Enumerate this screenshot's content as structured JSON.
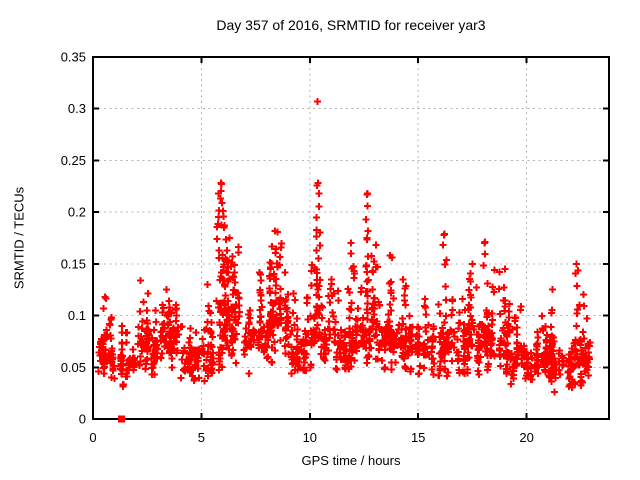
{
  "chart_data": {
    "type": "scatter",
    "title": "Day 357 of 2016, SRMTID for receiver yar3",
    "xlabel": "GPS time / hours",
    "ylabel": "SRMTID / TECUs",
    "xlim": [
      0,
      23.8
    ],
    "ylim": [
      0,
      0.35
    ],
    "xtick_values": [
      0,
      5,
      10,
      15,
      20
    ],
    "xtick_labels": [
      "0",
      "5",
      "10",
      "15",
      "20"
    ],
    "ytick_values": [
      0,
      0.05,
      0.1,
      0.15,
      0.2,
      0.25,
      0.3,
      0.35
    ],
    "ytick_labels": [
      "0",
      "0.05",
      "0.1",
      "0.15",
      "0.2",
      "0.25",
      "0.3",
      "0.35"
    ],
    "grid": true,
    "legend": "none",
    "marker": "plus",
    "marker_color": "#ff0000",
    "grid_color": "#b3b3b3",
    "border_color": "#000000",
    "hourly_bins": [
      {
        "x0": 0,
        "x1": 1,
        "min": 0.035,
        "max": 0.105,
        "mean": 0.062,
        "n": 60
      },
      {
        "x0": 1,
        "x1": 2,
        "min": 0.03,
        "max": 0.1,
        "mean": 0.058,
        "n": 60
      },
      {
        "x0": 2,
        "x1": 3,
        "min": 0.04,
        "max": 0.13,
        "mean": 0.075,
        "n": 66
      },
      {
        "x0": 3,
        "x1": 4,
        "min": 0.045,
        "max": 0.128,
        "mean": 0.082,
        "n": 70
      },
      {
        "x0": 4,
        "x1": 5,
        "min": 0.03,
        "max": 0.112,
        "mean": 0.066,
        "n": 62
      },
      {
        "x0": 5,
        "x1": 6,
        "min": 0.028,
        "max": 0.15,
        "mean": 0.072,
        "n": 60
      },
      {
        "x0": 6,
        "x1": 7,
        "min": 0.05,
        "max": 0.185,
        "mean": 0.1,
        "n": 70
      },
      {
        "x0": 7,
        "x1": 8,
        "min": 0.04,
        "max": 0.16,
        "mean": 0.086,
        "n": 66
      },
      {
        "x0": 8,
        "x1": 9,
        "min": 0.05,
        "max": 0.175,
        "mean": 0.103,
        "n": 72
      },
      {
        "x0": 9,
        "x1": 10,
        "min": 0.04,
        "max": 0.13,
        "mean": 0.077,
        "n": 66
      },
      {
        "x0": 10,
        "x1": 11,
        "min": 0.045,
        "max": 0.16,
        "mean": 0.085,
        "n": 64
      },
      {
        "x0": 11,
        "x1": 12,
        "min": 0.04,
        "max": 0.135,
        "mean": 0.074,
        "n": 66
      },
      {
        "x0": 12,
        "x1": 13,
        "min": 0.05,
        "max": 0.165,
        "mean": 0.088,
        "n": 68
      },
      {
        "x0": 13,
        "x1": 14,
        "min": 0.04,
        "max": 0.155,
        "mean": 0.082,
        "n": 68
      },
      {
        "x0": 14,
        "x1": 15,
        "min": 0.04,
        "max": 0.135,
        "mean": 0.078,
        "n": 66
      },
      {
        "x0": 15,
        "x1": 16,
        "min": 0.04,
        "max": 0.13,
        "mean": 0.074,
        "n": 66
      },
      {
        "x0": 16,
        "x1": 17,
        "min": 0.04,
        "max": 0.14,
        "mean": 0.077,
        "n": 64
      },
      {
        "x0": 17,
        "x1": 18,
        "min": 0.04,
        "max": 0.14,
        "mean": 0.078,
        "n": 68
      },
      {
        "x0": 18,
        "x1": 19,
        "min": 0.04,
        "max": 0.15,
        "mean": 0.082,
        "n": 68
      },
      {
        "x0": 19,
        "x1": 20,
        "min": 0.03,
        "max": 0.14,
        "mean": 0.068,
        "n": 66
      },
      {
        "x0": 20,
        "x1": 21,
        "min": 0.03,
        "max": 0.115,
        "mean": 0.062,
        "n": 70
      },
      {
        "x0": 21,
        "x1": 22,
        "min": 0.025,
        "max": 0.115,
        "mean": 0.058,
        "n": 70
      },
      {
        "x0": 22,
        "x1": 22.9,
        "min": 0.02,
        "max": 0.13,
        "mean": 0.062,
        "n": 74
      }
    ],
    "spikes": [
      {
        "x": 0.55,
        "w": 0.1,
        "base": 0.06,
        "peak": 0.118,
        "n": 10
      },
      {
        "x": 2.2,
        "w": 0.15,
        "base": 0.07,
        "peak": 0.134,
        "n": 16
      },
      {
        "x": 3.4,
        "w": 0.2,
        "base": 0.07,
        "peak": 0.125,
        "n": 14
      },
      {
        "x": 5.9,
        "w": 0.2,
        "base": 0.1,
        "peak": 0.228,
        "n": 36
      },
      {
        "x": 6.3,
        "w": 0.25,
        "base": 0.08,
        "peak": 0.175,
        "n": 26
      },
      {
        "x": 8.4,
        "w": 0.3,
        "base": 0.09,
        "peak": 0.182,
        "n": 40
      },
      {
        "x": 10.38,
        "w": 0.1,
        "base": 0.1,
        "peak": 0.228,
        "n": 24
      },
      {
        "x": 11.0,
        "w": 0.15,
        "base": 0.07,
        "peak": 0.135,
        "n": 10
      },
      {
        "x": 11.9,
        "w": 0.15,
        "base": 0.08,
        "peak": 0.17,
        "n": 14
      },
      {
        "x": 12.65,
        "w": 0.07,
        "base": 0.12,
        "peak": 0.218,
        "n": 12
      },
      {
        "x": 13.05,
        "w": 0.2,
        "base": 0.08,
        "peak": 0.168,
        "n": 18
      },
      {
        "x": 13.7,
        "w": 0.15,
        "base": 0.08,
        "peak": 0.158,
        "n": 12
      },
      {
        "x": 14.3,
        "w": 0.2,
        "base": 0.07,
        "peak": 0.135,
        "n": 12
      },
      {
        "x": 16.2,
        "w": 0.1,
        "base": 0.08,
        "peak": 0.178,
        "n": 10
      },
      {
        "x": 17.5,
        "w": 0.25,
        "base": 0.07,
        "peak": 0.15,
        "n": 18
      },
      {
        "x": 18.05,
        "w": 0.15,
        "base": 0.08,
        "peak": 0.17,
        "n": 14
      },
      {
        "x": 19.0,
        "w": 0.25,
        "base": 0.06,
        "peak": 0.145,
        "n": 14
      },
      {
        "x": 21.2,
        "w": 0.15,
        "base": 0.04,
        "peak": 0.125,
        "n": 12
      },
      {
        "x": 22.3,
        "w": 0.1,
        "base": 0.06,
        "peak": 0.15,
        "n": 10
      }
    ],
    "outliers": [
      [
        10.35,
        0.307
      ],
      [
        5.92,
        0.227
      ],
      [
        10.33,
        0.226
      ],
      [
        10.42,
        0.218
      ],
      [
        5.87,
        0.213
      ],
      [
        12.64,
        0.217
      ],
      [
        12.66,
        0.206
      ],
      [
        6.02,
        0.196
      ],
      [
        10.3,
        0.195
      ],
      [
        12.6,
        0.193
      ],
      [
        8.52,
        0.181
      ],
      [
        16.22,
        0.179
      ],
      [
        18.08,
        0.171
      ]
    ],
    "special_points": [
      {
        "x": 1.32,
        "y": 0.0,
        "marker": "filled-square"
      }
    ]
  }
}
